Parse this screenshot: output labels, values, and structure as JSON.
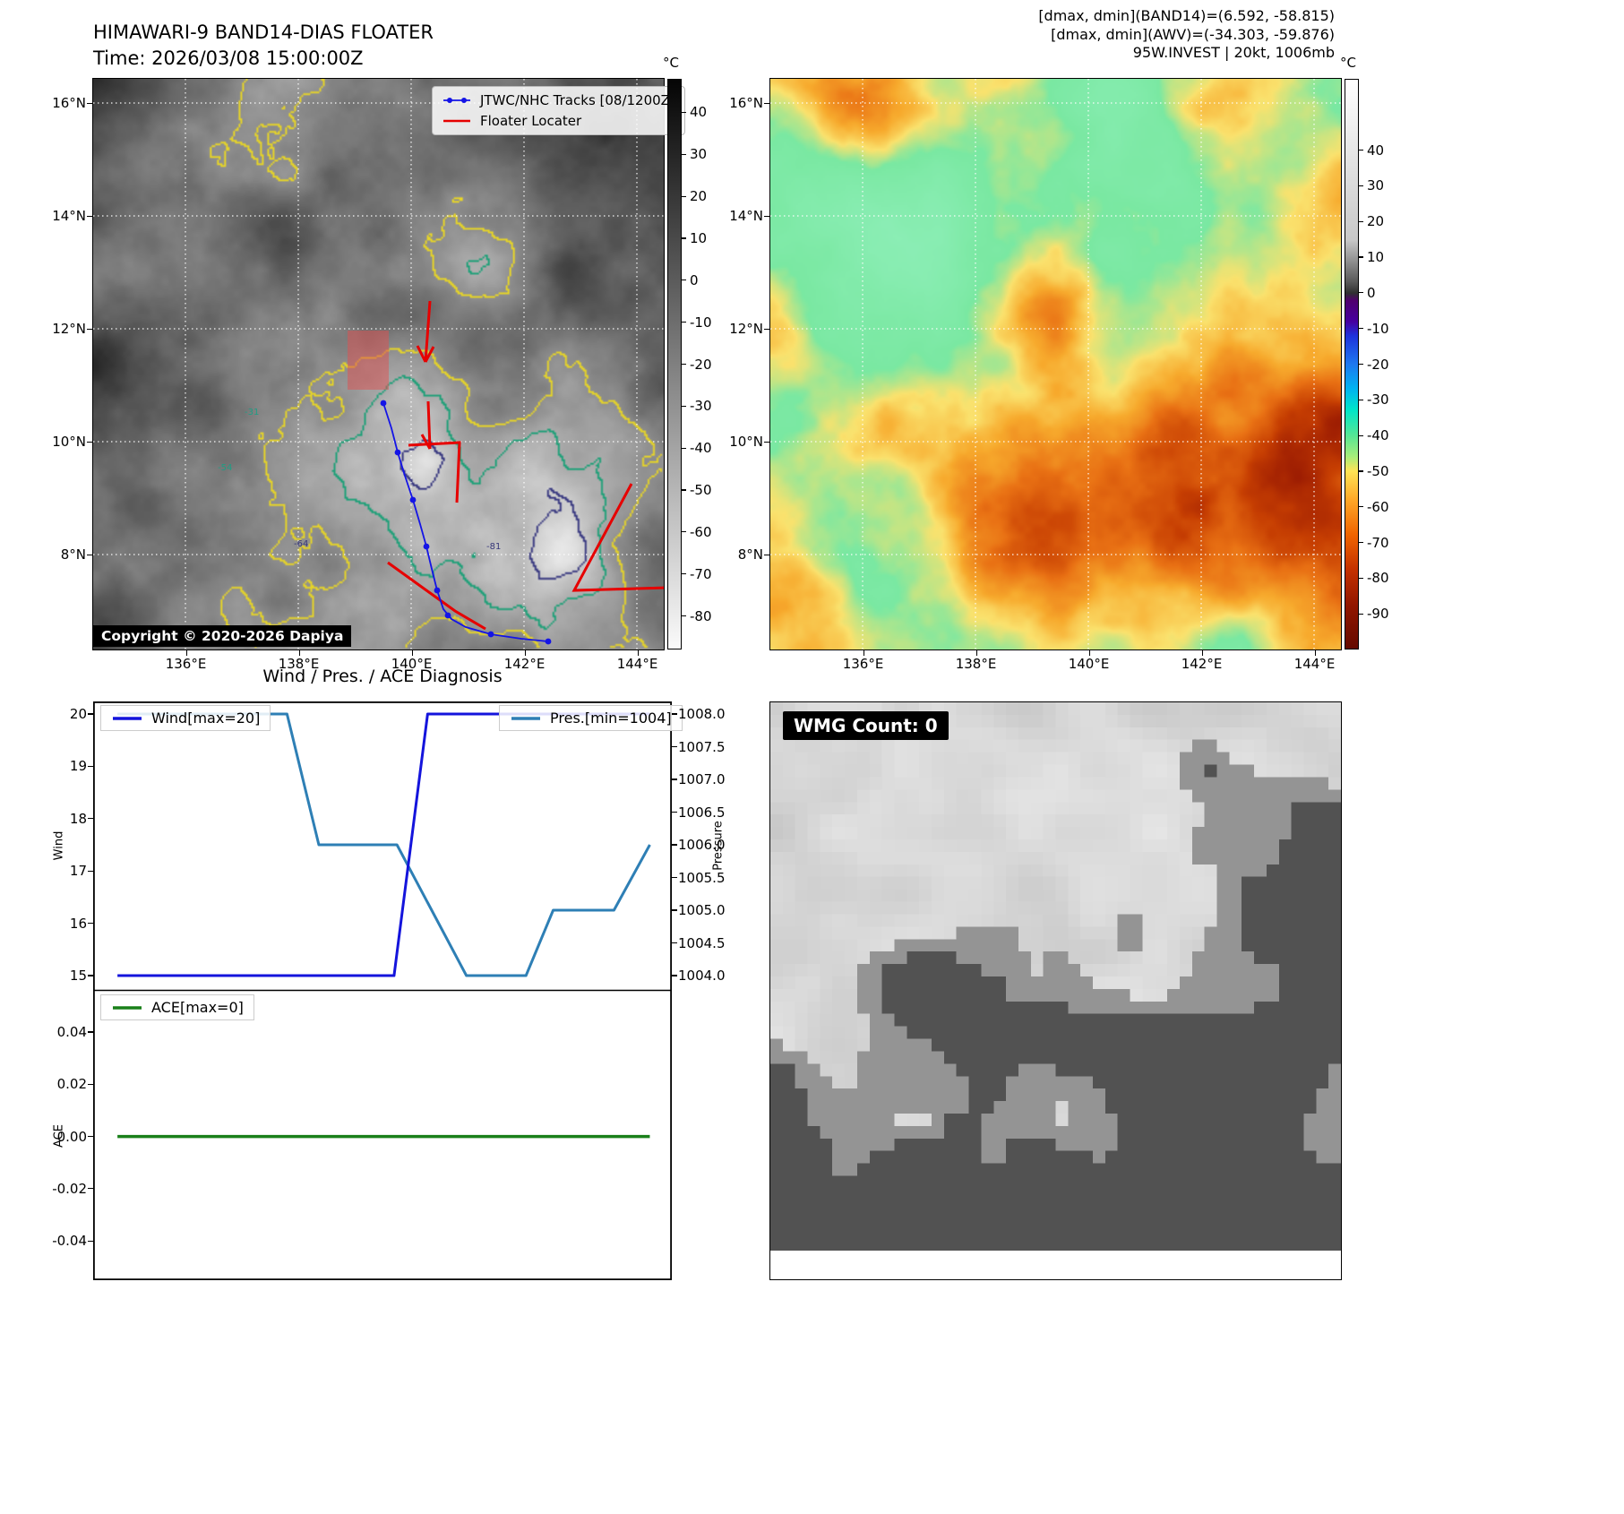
{
  "panel_tl": {
    "title": "HIMAWARI-9 BAND14-DIAS FLOATER",
    "subtitle": "Time: 2026/03/08 15:00:00Z",
    "legend": [
      {
        "label": "JTWC/NHC Tracks [08/1200Z]",
        "color": "#1414e6"
      },
      {
        "label": "Floater Locater",
        "color": "#e60000"
      }
    ],
    "copyright": "Copyright © 2020-2026 Dapiya",
    "colorbar_unit": "°C",
    "colorbar_ticks": [
      "40",
      "30",
      "20",
      "10",
      "0",
      "-10",
      "-20",
      "-30",
      "-40",
      "-50",
      "-60",
      "-70",
      "-80"
    ],
    "x_ticks": [
      "136°E",
      "138°E",
      "140°E",
      "142°E",
      "144°E"
    ],
    "y_ticks": [
      "16°N",
      "14°N",
      "12°N",
      "10°N",
      "8°N"
    ],
    "contour_labels": [
      "-31",
      "-54",
      "-64",
      "-81"
    ]
  },
  "panel_tr": {
    "header_lines": [
      "[dmax, dmin](BAND14)=(6.592, -58.815)",
      "[dmax, dmin](AWV)=(-34.303, -59.876)",
      "95W.INVEST | 20kt, 1006mb"
    ],
    "colorbar_unit": "°C",
    "colorbar_ticks": [
      "40",
      "30",
      "20",
      "10",
      "0",
      "-10",
      "-20",
      "-30",
      "-40",
      "-50",
      "-60",
      "-70",
      "-80",
      "-90"
    ],
    "x_ticks": [
      "136°E",
      "138°E",
      "140°E",
      "142°E",
      "144°E"
    ],
    "y_ticks": [
      "16°N",
      "14°N",
      "12°N",
      "10°N",
      "8°N"
    ]
  },
  "chart_data": {
    "type": "line",
    "title": "Wind / Pres. / ACE Diagnosis",
    "subplots": [
      {
        "left_axis": {
          "label": "Wind",
          "ticks": [
            "20",
            "19",
            "18",
            "17",
            "16",
            "15"
          ],
          "lim": [
            14.73,
            20.24
          ]
        },
        "right_axis": {
          "label": "Pressure",
          "ticks": [
            "1008.0",
            "1007.5",
            "1007.0",
            "1006.5",
            "1006.0",
            "1005.5",
            "1005.0",
            "1004.5",
            "1004.0"
          ],
          "lim": [
            1003.78,
            1008.19
          ]
        },
        "series": [
          {
            "name": "Wind[max=20]",
            "color": "#1414dc",
            "axis": "wind",
            "points": [
              [
                0.042,
                15
              ],
              [
                0.52,
                15
              ],
              [
                0.578,
                20
              ],
              [
                0.962,
                20
              ]
            ]
          },
          {
            "name": "Pres.[min=1004]",
            "color": "#2e7fb5",
            "axis": "pressure",
            "points": [
              [
                0.042,
                1008
              ],
              [
                0.335,
                1008
              ],
              [
                0.39,
                1006
              ],
              [
                0.525,
                1006
              ],
              [
                0.645,
                1004
              ],
              [
                0.748,
                1004
              ],
              [
                0.795,
                1005
              ],
              [
                0.9,
                1005
              ],
              [
                0.962,
                1006
              ]
            ]
          }
        ]
      },
      {
        "left_axis": {
          "label": "ACE",
          "ticks": [
            "0.04",
            "0.02",
            "0.00",
            "-0.02",
            "-0.04"
          ],
          "lim": [
            -0.0555,
            0.056
          ]
        },
        "series": [
          {
            "name": "ACE[max=0]",
            "color": "#1a801a",
            "axis": "ace",
            "points": [
              [
                0.042,
                0
              ],
              [
                0.962,
                0
              ]
            ]
          }
        ]
      }
    ]
  },
  "panel_br": {
    "label": "WMG Count: 0"
  }
}
